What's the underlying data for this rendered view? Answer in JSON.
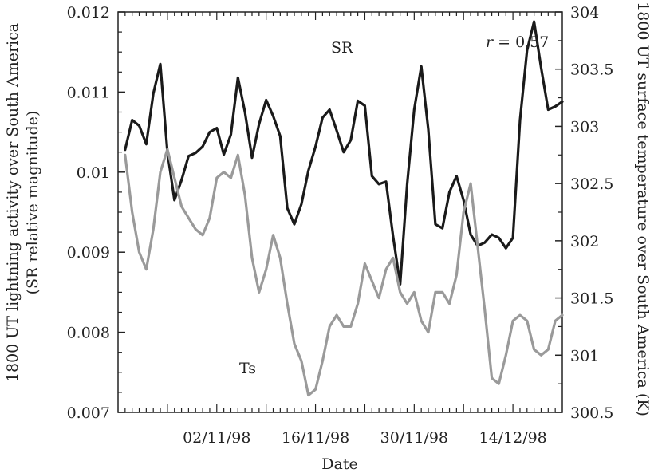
{
  "chart_data": {
    "type": "line",
    "xlabel": "Date",
    "ylabel_left": "1800 UT lightning activity over South America",
    "ylabel_left_sub": "(SR relative magnitude)",
    "ylabel_right": "1800 UT surface temperature over South America (K)",
    "annotation": {
      "prefix": "r",
      "text": " = 0.57"
    },
    "x_ticks": [
      "02/11/98",
      "16/11/98",
      "30/11/98",
      "14/12/98"
    ],
    "x_tick_positions": [
      14,
      28,
      42,
      56
    ],
    "xlim": [
      0,
      63
    ],
    "ylim_left": [
      0.007,
      0.012
    ],
    "yticks_left": [
      "0.007",
      "0.008",
      "0.009",
      "0.01",
      "0.011",
      "0.012"
    ],
    "ylim_right": [
      300.5,
      304
    ],
    "yticks_right": [
      "300.5",
      "301",
      "301.5",
      "302",
      "302.5",
      "303",
      "303.5",
      "304"
    ],
    "grid": false,
    "series": [
      {
        "name": "SR",
        "axis": "left",
        "color": "#1a1a1a",
        "x": [
          1,
          2,
          3,
          4,
          5,
          6,
          7,
          8,
          9,
          10,
          11,
          12,
          13,
          14,
          15,
          16,
          17,
          18,
          19,
          20,
          21,
          22,
          23,
          24,
          25,
          26,
          27,
          28,
          29,
          30,
          31,
          32,
          33,
          34,
          35,
          36,
          37,
          38,
          39,
          40,
          41,
          42,
          43,
          44,
          45,
          46,
          47,
          48,
          49,
          50,
          51,
          52,
          53,
          54,
          55,
          56,
          57,
          58,
          59,
          60,
          61,
          62,
          63
        ],
        "values": [
          0.01028,
          0.01065,
          0.01058,
          0.01035,
          0.01098,
          0.01135,
          0.01025,
          0.00965,
          0.0099,
          0.0102,
          0.01024,
          0.01032,
          0.0105,
          0.01055,
          0.01022,
          0.01047,
          0.01118,
          0.01075,
          0.01018,
          0.0106,
          0.0109,
          0.0107,
          0.01045,
          0.00955,
          0.00935,
          0.0096,
          0.01002,
          0.01032,
          0.01068,
          0.01078,
          0.01052,
          0.01025,
          0.0104,
          0.01089,
          0.01083,
          0.00995,
          0.00985,
          0.00988,
          0.0092,
          0.0086,
          0.00985,
          0.01078,
          0.01132,
          0.01053,
          0.00935,
          0.0093,
          0.00975,
          0.00995,
          0.00965,
          0.00922,
          0.00908,
          0.00912,
          0.00922,
          0.00918,
          0.00905,
          0.00918,
          0.01065,
          0.01152,
          0.01188,
          0.0113,
          0.01078,
          0.01082,
          0.01088
        ]
      },
      {
        "name": "Ts",
        "axis": "right",
        "color": "#9a9a9a",
        "x": [
          1,
          2,
          3,
          4,
          5,
          6,
          7,
          8,
          9,
          10,
          11,
          12,
          13,
          14,
          15,
          16,
          17,
          18,
          19,
          20,
          21,
          22,
          23,
          24,
          25,
          26,
          27,
          28,
          29,
          30,
          31,
          32,
          33,
          34,
          35,
          36,
          37,
          38,
          39,
          40,
          41,
          42,
          43,
          44,
          45,
          46,
          47,
          48,
          49,
          50,
          51,
          52,
          53,
          54,
          55,
          56,
          57,
          58,
          59,
          60,
          61,
          62,
          63
        ],
        "values": [
          302.75,
          302.25,
          301.9,
          301.75,
          302.1,
          302.6,
          302.8,
          302.55,
          302.3,
          302.2,
          302.1,
          302.05,
          302.2,
          302.55,
          302.6,
          302.55,
          302.75,
          302.4,
          301.85,
          301.55,
          301.75,
          302.05,
          301.85,
          301.45,
          301.1,
          300.95,
          300.65,
          300.7,
          300.95,
          301.25,
          301.35,
          301.25,
          301.25,
          301.45,
          301.8,
          301.65,
          301.5,
          301.75,
          301.85,
          301.55,
          301.45,
          301.55,
          301.3,
          301.2,
          301.55,
          301.55,
          301.45,
          301.7,
          302.25,
          302.5,
          301.95,
          301.4,
          300.8,
          300.75,
          301.0,
          301.3,
          301.35,
          301.3,
          301.05,
          301.0,
          301.05,
          301.3,
          301.35
        ]
      }
    ]
  }
}
